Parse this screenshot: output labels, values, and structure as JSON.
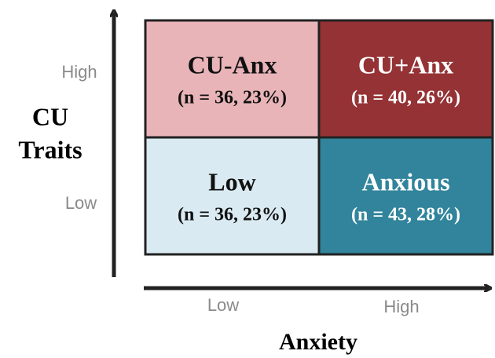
{
  "y_axis": {
    "title_lines": [
      "CU",
      "Traits"
    ],
    "levels": [
      "High",
      "Low"
    ]
  },
  "x_axis": {
    "title": "Anxiety",
    "levels": [
      "Low",
      "High"
    ]
  },
  "cells": [
    {
      "label": "CU-Anx",
      "detail": "(n = 36, 23%)",
      "color": "#e8b4b8",
      "text_color": "#111111"
    },
    {
      "label": "CU+Anx",
      "detail": "(n = 40, 26%)",
      "color": "#953235",
      "text_color": "#ffffff"
    },
    {
      "label": "Low",
      "detail": "(n = 36, 23%)",
      "color": "#daeaf2",
      "text_color": "#111111"
    },
    {
      "label": "Anxious",
      "detail": "(n = 43, 28%)",
      "color": "#31849b",
      "text_color": "#ffffff"
    }
  ]
}
